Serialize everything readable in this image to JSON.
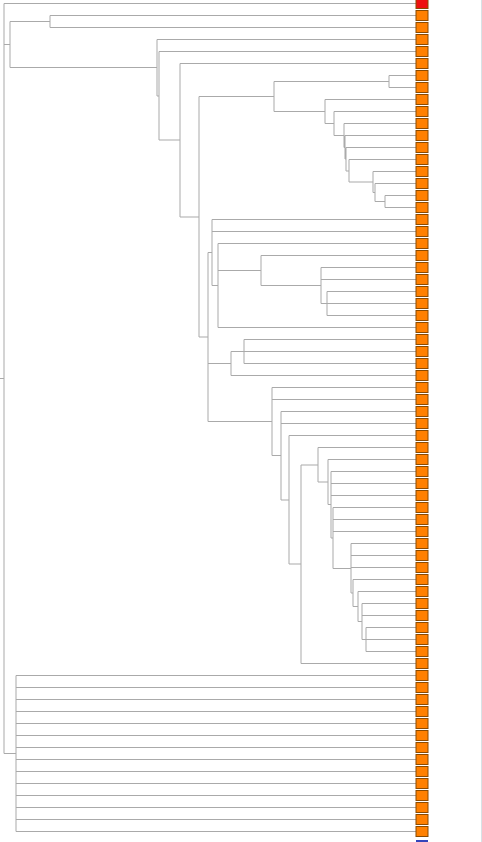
{
  "tree": {
    "leaf_count": 70,
    "colors": {
      "branch": "#aaaaaa",
      "leaf_default": "#ff8000",
      "leaf_highlight": "#ee1111",
      "edge_strip": "#d8e2e6",
      "end_marker": "#3344bb"
    },
    "highlighted_leaves": [
      0
    ]
  }
}
